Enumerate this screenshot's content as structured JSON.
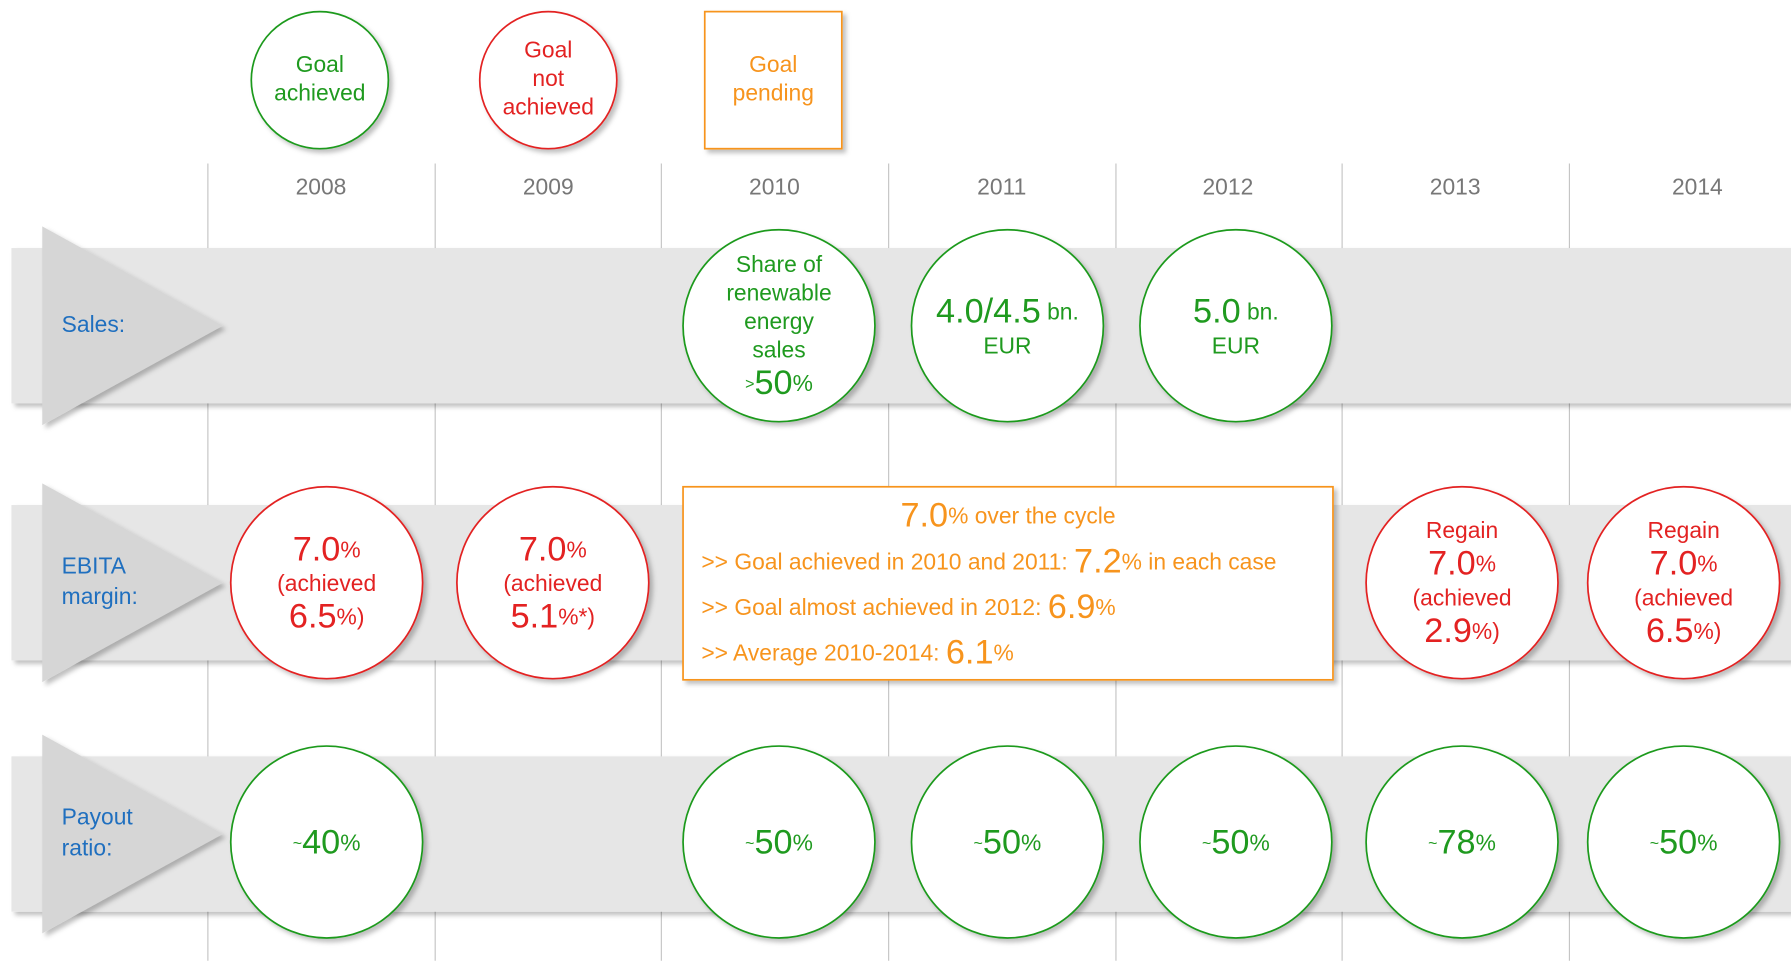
{
  "legend": [
    {
      "status": "achieved",
      "shape": "circle",
      "color": "#1f9a1f",
      "lines": [
        "Goal",
        "achieved"
      ]
    },
    {
      "status": "not_achieved",
      "shape": "circle",
      "color": "#e32222",
      "lines": [
        "Goal",
        "not",
        "achieved"
      ]
    },
    {
      "status": "pending",
      "shape": "square",
      "color": "#f7941d",
      "lines": [
        "Goal",
        "pending"
      ]
    }
  ],
  "years": [
    "2008",
    "2009",
    "2010",
    "2011",
    "2012",
    "2013",
    "2014"
  ],
  "rows": [
    {
      "label": [
        "Sales:"
      ],
      "cells": [
        null,
        null,
        {
          "status": "achieved",
          "lines": [
            [
              "Share of"
            ],
            [
              "renewable"
            ],
            [
              "energy"
            ],
            [
              "sales"
            ],
            [
              {
                "text": ">",
                "small": true
              },
              {
                "text": "50",
                "big": true
              },
              "%"
            ]
          ]
        },
        {
          "status": "achieved",
          "lines": [
            [
              {
                "text": "4.0/4.5",
                "big": true
              },
              " bn."
            ],
            [
              "EUR"
            ]
          ]
        },
        {
          "status": "achieved",
          "lines": [
            [
              {
                "text": "5.0",
                "big": true
              },
              " bn."
            ],
            [
              "EUR"
            ]
          ]
        },
        null,
        null
      ]
    },
    {
      "label": [
        "EBITA",
        "margin:"
      ],
      "cells": [
        {
          "status": "not_achieved",
          "lines": [
            [
              {
                "text": "7.0",
                "big": true
              },
              "%"
            ],
            [
              "(achieved"
            ],
            [
              {
                "text": "6.5",
                "big": true
              },
              "%)"
            ]
          ]
        },
        {
          "status": "not_achieved",
          "lines": [
            [
              {
                "text": "7.0",
                "big": true
              },
              "%"
            ],
            [
              "(achieved"
            ],
            [
              {
                "text": "5.1",
                "big": true
              },
              "%*)"
            ]
          ]
        },
        {
          "status": "pending",
          "box": true,
          "lines": [
            [
              {
                "text": "7.0",
                "big": true
              },
              "% over the cycle"
            ],
            [
              ">> Goal achieved in 2010 and 2011: ",
              {
                "text": "7.2",
                "big": true
              },
              "% in each case"
            ],
            [
              ">> Goal almost achieved in 2012: ",
              {
                "text": "6.9",
                "big": true
              },
              "%"
            ],
            [
              ">> Average 2010-2014: ",
              {
                "text": "6.1",
                "big": true
              },
              "%"
            ]
          ]
        },
        null,
        null,
        {
          "status": "not_achieved",
          "lines": [
            [
              "Regain"
            ],
            [
              {
                "text": "7.0",
                "big": true
              },
              "%"
            ],
            [
              "(achieved"
            ],
            [
              {
                "text": "2.9",
                "big": true
              },
              "%)"
            ]
          ]
        },
        {
          "status": "not_achieved",
          "lines": [
            [
              "Regain"
            ],
            [
              {
                "text": "7.0",
                "big": true
              },
              "%"
            ],
            [
              "(achieved"
            ],
            [
              {
                "text": "6.5",
                "big": true
              },
              "%)"
            ]
          ]
        }
      ]
    },
    {
      "label": [
        "Payout",
        "ratio:"
      ],
      "cells": [
        {
          "status": "achieved",
          "lines": [
            [
              {
                "text": "~",
                "small": true
              },
              {
                "text": "40",
                "big": true
              },
              "%"
            ]
          ]
        },
        null,
        {
          "status": "achieved",
          "lines": [
            [
              {
                "text": "~",
                "small": true
              },
              {
                "text": "50",
                "big": true
              },
              "%"
            ]
          ]
        },
        {
          "status": "achieved",
          "lines": [
            [
              {
                "text": "~",
                "small": true
              },
              {
                "text": "50",
                "big": true
              },
              "%"
            ]
          ]
        },
        {
          "status": "achieved",
          "lines": [
            [
              {
                "text": "~",
                "small": true
              },
              {
                "text": "50",
                "big": true
              },
              "%"
            ]
          ]
        },
        {
          "status": "achieved",
          "lines": [
            [
              {
                "text": "~",
                "small": true
              },
              {
                "text": "78",
                "big": true
              },
              "%"
            ]
          ]
        },
        {
          "status": "achieved",
          "lines": [
            [
              {
                "text": "~",
                "small": true
              },
              {
                "text": "50",
                "big": true
              },
              "%"
            ]
          ]
        }
      ]
    }
  ]
}
